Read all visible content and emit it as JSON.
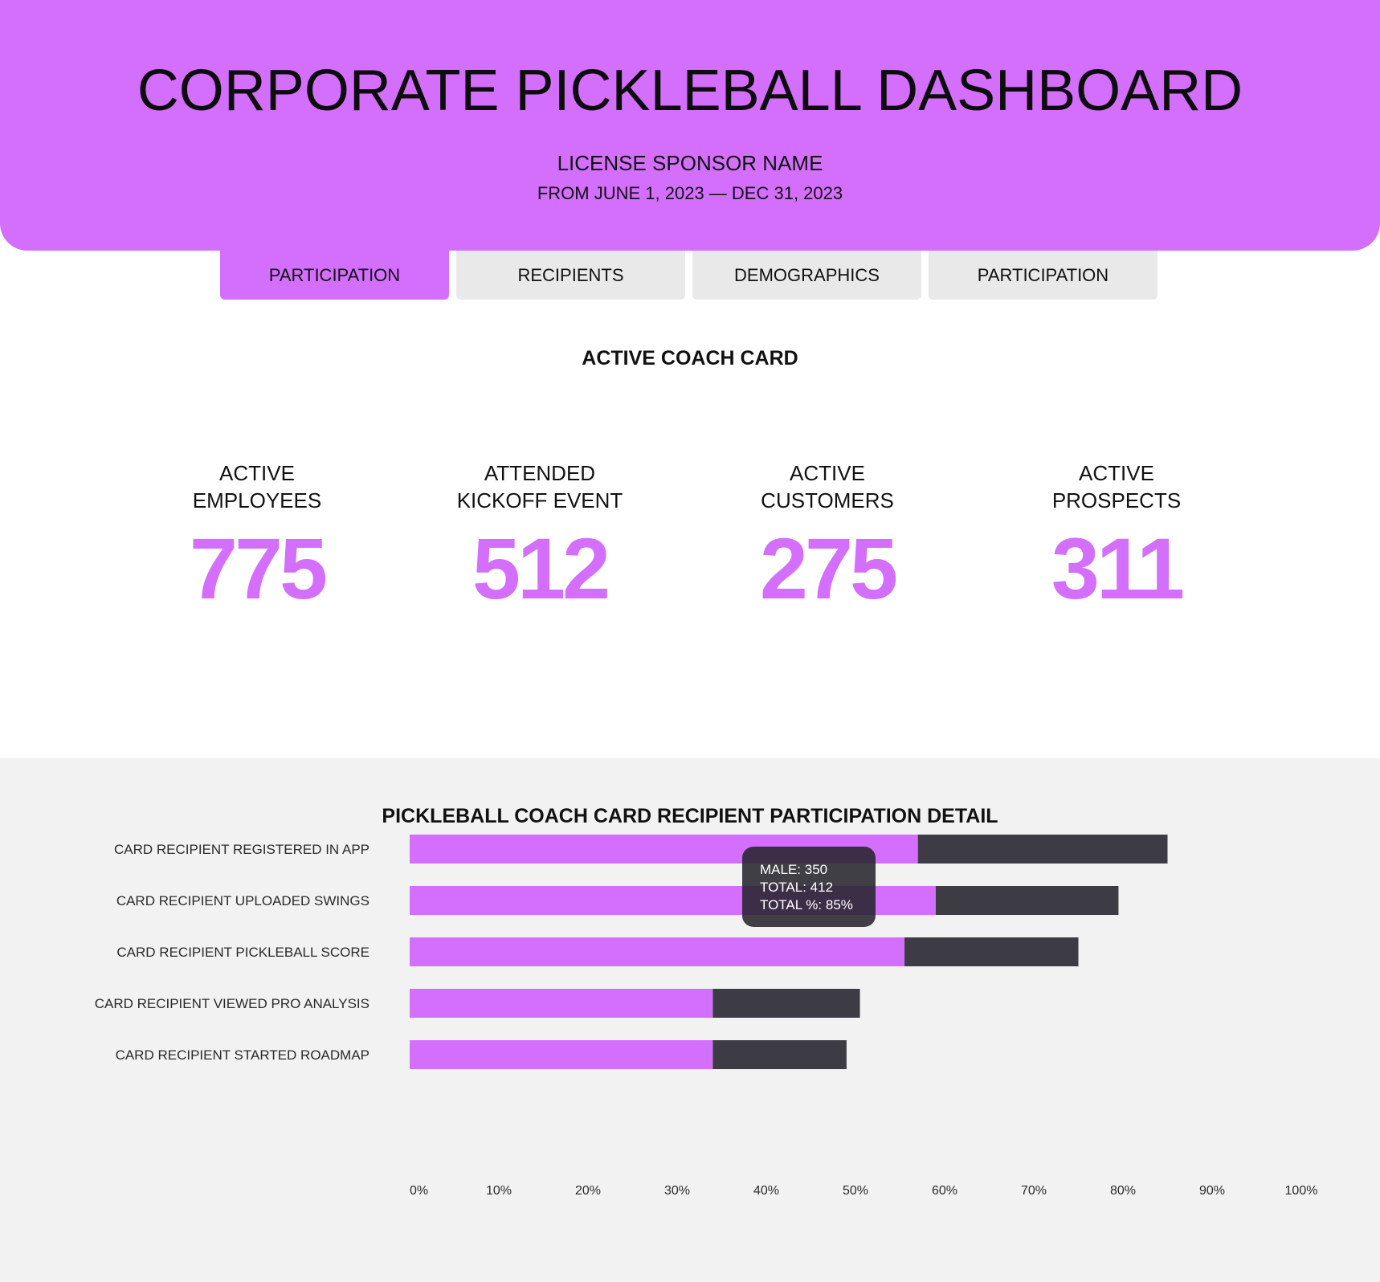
{
  "header": {
    "title": "CORPORATE PICKLEBALL DASHBOARD",
    "sponsor": "LICENSE SPONSOR NAME",
    "date_range": "FROM JUNE 1, 2023 — DEC 31, 2023"
  },
  "colors": {
    "accent": "#d36ffc",
    "dark": "#3d3b44",
    "tab_inactive": "#e9e9e9",
    "chart_bg": "#f2f2f3"
  },
  "tabs": [
    {
      "label": "PARTICIPATION",
      "active": true
    },
    {
      "label": "RECIPIENTS",
      "active": false
    },
    {
      "label": "DEMOGRAPHICS",
      "active": false
    },
    {
      "label": "PARTICIPATION",
      "active": false
    }
  ],
  "kpi_section": {
    "title": "ACTIVE COACH CARD",
    "items": [
      {
        "label_line1": "ACTIVE",
        "label_line2": "EMPLOYEES",
        "value": "775"
      },
      {
        "label_line1": "ATTENDED",
        "label_line2": "KICKOFF EVENT",
        "value": "512"
      },
      {
        "label_line1": "ACTIVE",
        "label_line2": "CUSTOMERS",
        "value": "275"
      },
      {
        "label_line1": "ACTIVE",
        "label_line2": "PROSPECTS",
        "value": "311"
      }
    ]
  },
  "chart_section": {
    "title": "PICKLEBALL COACH CARD RECIPIENT PARTICIPATION DETAIL",
    "tooltip": {
      "line1": "MALE: 350",
      "line2": "TOTAL: 412",
      "line3": "TOTAL %: 85%"
    }
  },
  "chart_data": {
    "type": "bar",
    "orientation": "horizontal",
    "stacked": true,
    "categories": [
      "CARD RECIPIENT REGISTERED IN APP",
      "CARD RECIPIENT UPLOADED SWINGS",
      "CARD RECIPIENT PICKLEBALL SCORE",
      "CARD RECIPIENT VIEWED PRO ANALYSIS",
      "CARD RECIPIENT STARTED ROADMAP"
    ],
    "series": [
      {
        "values": [
          57,
          59,
          55.5,
          34,
          34
        ],
        "color": "#d36ffc"
      },
      {
        "values": [
          28,
          20.5,
          19.5,
          16.5,
          15
        ],
        "color": "#3d3b44"
      }
    ],
    "x_ticks": [
      "0%",
      "10%",
      "20%",
      "30%",
      "40%",
      "50%",
      "60%",
      "70%",
      "80%",
      "90%",
      "100%"
    ],
    "xlim": [
      0,
      100
    ],
    "grid": false,
    "legend": "none"
  }
}
